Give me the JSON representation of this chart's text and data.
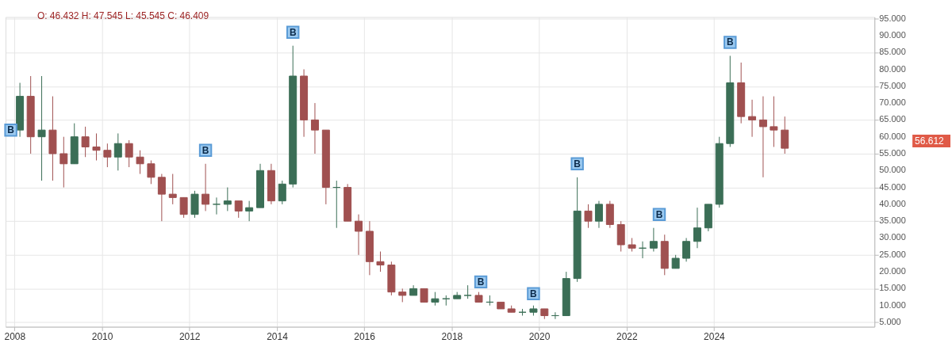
{
  "chart_data": {
    "type": "candlestick",
    "colors": [
      "#3b6e56",
      "#a05050",
      "#3b6e56",
      "#a05050",
      "#a05050",
      "#3b6e56",
      "#a05050",
      "#a05050",
      "#a05050",
      "#3b6e56",
      "#a05050",
      "#a05050",
      "#a05050",
      "#a05050",
      "#a05050",
      "#a05050",
      "#3b6e56",
      "#a05050",
      "#3b6e56",
      "#3b6e56",
      "#a05050",
      "#3b6e56",
      "#3b6e56",
      "#a05050",
      "#3b6e56",
      "#3b6e56",
      "#a05050",
      "#a05050",
      "#a05050",
      "#3b6e56",
      "#a05050",
      "#a05050",
      "#a05050",
      "#a05050",
      "#a05050",
      "#a05050",
      "#3b6e56",
      "#a05050",
      "#3b6e56",
      "#3b6e56",
      "#3b6e56",
      "#3b6e56",
      "#a05050",
      "#3b6e56",
      "#a05050",
      "#a05050",
      "#3b6e56",
      "#3b6e56",
      "#a05050",
      "#3b6e56",
      "#3b6e56",
      "#3b6e56",
      "#a05050",
      "#3b6e56",
      "#a05050",
      "#a05050",
      "#a05050",
      "#3b6e56",
      "#3b6e56",
      "#a05050",
      "#3b6e56",
      "#3b6e56",
      "#3b6e56",
      "#3b6e56",
      "#3b6e56",
      "#3b6e56",
      "#a05050",
      "#a05050",
      "#a05050",
      "#a05050",
      "#a05050"
    ],
    "x": [
      "2008-02-15",
      "2008-05-15",
      "2008-08-15",
      "2008-11-15",
      "2009-02-15",
      "2009-05-15",
      "2009-08-15",
      "2009-11-15",
      "2010-02-15",
      "2010-05-15",
      "2010-08-15",
      "2010-11-15",
      "2011-02-15",
      "2011-05-15",
      "2011-08-15",
      "2011-11-15",
      "2012-02-15",
      "2012-05-15",
      "2012-08-15",
      "2012-11-15",
      "2013-02-15",
      "2013-05-15",
      "2013-08-15",
      "2013-11-15",
      "2014-02-15",
      "2014-05-15",
      "2014-08-15",
      "2014-11-15",
      "2015-02-15",
      "2015-05-15",
      "2015-08-15",
      "2015-11-15",
      "2016-02-15",
      "2016-05-15",
      "2016-08-15",
      "2016-11-15",
      "2017-02-15",
      "2017-05-15",
      "2017-08-15",
      "2017-11-15",
      "2018-02-15",
      "2018-05-15",
      "2018-08-15",
      "2018-11-15",
      "2019-02-15",
      "2019-05-15",
      "2019-08-15",
      "2019-11-15",
      "2020-02-15",
      "2020-05-15",
      "2020-08-15",
      "2020-11-15",
      "2021-02-15",
      "2021-05-15",
      "2021-08-15",
      "2021-11-15",
      "2022-02-15",
      "2022-05-15",
      "2022-08-15",
      "2022-11-15",
      "2023-02-15",
      "2023-05-15",
      "2023-08-15",
      "2023-11-15",
      "2024-02-15",
      "2024-05-15",
      "2024-08-15",
      "2024-11-15",
      "2025-02-15",
      "2025-05-15",
      "2025-08-15"
    ],
    "ohlc": [
      [
        62,
        76,
        60,
        72
      ],
      [
        72,
        78,
        55,
        60
      ],
      [
        60,
        78,
        47,
        62
      ],
      [
        62,
        72,
        47,
        55
      ],
      [
        55,
        60,
        45,
        52
      ],
      [
        52,
        64,
        52,
        60
      ],
      [
        60,
        63,
        54,
        57
      ],
      [
        57,
        61,
        53,
        56
      ],
      [
        56,
        58,
        51,
        54
      ],
      [
        54,
        61,
        50,
        58
      ],
      [
        58,
        59,
        51,
        54
      ],
      [
        54,
        56,
        49,
        52
      ],
      [
        52,
        53,
        46,
        48
      ],
      [
        48,
        49,
        35,
        43
      ],
      [
        43,
        49,
        40,
        42
      ],
      [
        42,
        42,
        36,
        37
      ],
      [
        37,
        44,
        36,
        43
      ],
      [
        43,
        52,
        38,
        40
      ],
      [
        40,
        42,
        37,
        40
      ],
      [
        40,
        45,
        38,
        41
      ],
      [
        41,
        41,
        36,
        38
      ],
      [
        38,
        41,
        35,
        39
      ],
      [
        39,
        52,
        39,
        50
      ],
      [
        50,
        52,
        40,
        41
      ],
      [
        41,
        47,
        40,
        46
      ],
      [
        46,
        87,
        45,
        78
      ],
      [
        78,
        80,
        60,
        65
      ],
      [
        65,
        70,
        55,
        62
      ],
      [
        62,
        62,
        40,
        45
      ],
      [
        45,
        47,
        33,
        45
      ],
      [
        45,
        46,
        35,
        35
      ],
      [
        35,
        37,
        25,
        32
      ],
      [
        32,
        35,
        19,
        23
      ],
      [
        23,
        26,
        20,
        22
      ],
      [
        22,
        23,
        13,
        14
      ],
      [
        14,
        15,
        11,
        13
      ],
      [
        13,
        16,
        13,
        15
      ],
      [
        15,
        15,
        11,
        11
      ],
      [
        11,
        14,
        10,
        12
      ],
      [
        12,
        13,
        10,
        12
      ],
      [
        12,
        14,
        12,
        13
      ],
      [
        13,
        16,
        12,
        13
      ],
      [
        13,
        14,
        11,
        11
      ],
      [
        11,
        13,
        10,
        11
      ],
      [
        11,
        11,
        9,
        9
      ],
      [
        9,
        10,
        8,
        8
      ],
      [
        8,
        9,
        7,
        8
      ],
      [
        8,
        10,
        7,
        9
      ],
      [
        9,
        9,
        6,
        7
      ],
      [
        7,
        8,
        6,
        7
      ],
      [
        7,
        20,
        7,
        18
      ],
      [
        18,
        48,
        17,
        38
      ],
      [
        38,
        40,
        33,
        35
      ],
      [
        35,
        41,
        33,
        40
      ],
      [
        40,
        41,
        33,
        34
      ],
      [
        34,
        35,
        26,
        28
      ],
      [
        28,
        30,
        26,
        27
      ],
      [
        27,
        29,
        24,
        27
      ],
      [
        27,
        33,
        26,
        29
      ],
      [
        29,
        31,
        19,
        21
      ],
      [
        21,
        25,
        21,
        24
      ],
      [
        24,
        30,
        23,
        29
      ],
      [
        29,
        39,
        27,
        33
      ],
      [
        33,
        40,
        32,
        40
      ],
      [
        40,
        60,
        39,
        58
      ],
      [
        58,
        84,
        57,
        76
      ],
      [
        76,
        82,
        64,
        66
      ],
      [
        66,
        71,
        60,
        65
      ],
      [
        65,
        72,
        48,
        63
      ],
      [
        63,
        72,
        57,
        62
      ],
      [
        62,
        66,
        55,
        56.612
      ]
    ],
    "xlim": [
      "2007-11-20",
      "2027-08-01"
    ],
    "xticks": [
      "2008",
      "2010",
      "2012",
      "2014",
      "2016",
      "2018",
      "2020",
      "2022",
      "2024"
    ],
    "ylim": [
      3.7,
      95.5
    ],
    "yticks": [
      {
        "value": 5,
        "label": "5.000"
      },
      {
        "value": 10,
        "label": "10.000"
      },
      {
        "value": 15,
        "label": "15.000"
      },
      {
        "value": 20,
        "label": "20.000"
      },
      {
        "value": 25,
        "label": "25.000"
      },
      {
        "value": 30,
        "label": "30.000"
      },
      {
        "value": 35,
        "label": "35.000"
      },
      {
        "value": 40,
        "label": "40.000"
      },
      {
        "value": 45,
        "label": "45.000"
      },
      {
        "value": 50,
        "label": "50.000"
      },
      {
        "value": 55,
        "label": "55.000"
      },
      {
        "value": 60,
        "label": "60.000"
      },
      {
        "value": 65,
        "label": "65.000"
      },
      {
        "value": 70,
        "label": "70.000"
      },
      {
        "value": 75,
        "label": "75.000"
      },
      {
        "value": 80,
        "label": "80.000"
      },
      {
        "value": 85,
        "label": "85.000"
      },
      {
        "value": 90,
        "label": "90.000"
      },
      {
        "value": 95,
        "label": "95.000"
      }
    ],
    "grid": true,
    "annotations": [
      "O: 46.432 H: 47.545 L: 45.545 C: 46.409",
      {
        "text": "B",
        "x": "2007-12-01",
        "y": 62
      },
      {
        "text": "B",
        "x": "2012-05-15",
        "y": 56
      },
      {
        "text": "B",
        "x": "2014-05-15",
        "y": 91
      },
      {
        "text": "B",
        "x": "2018-09-01",
        "y": 17
      },
      {
        "text": "B",
        "x": "2019-11-15",
        "y": 13.5
      },
      {
        "text": "B",
        "x": "2020-11-15",
        "y": 52
      },
      {
        "text": "B",
        "x": "2022-10-01",
        "y": 37
      },
      {
        "text": "B",
        "x": "2024-05-15",
        "y": 88
      },
      "56.612"
    ]
  }
}
